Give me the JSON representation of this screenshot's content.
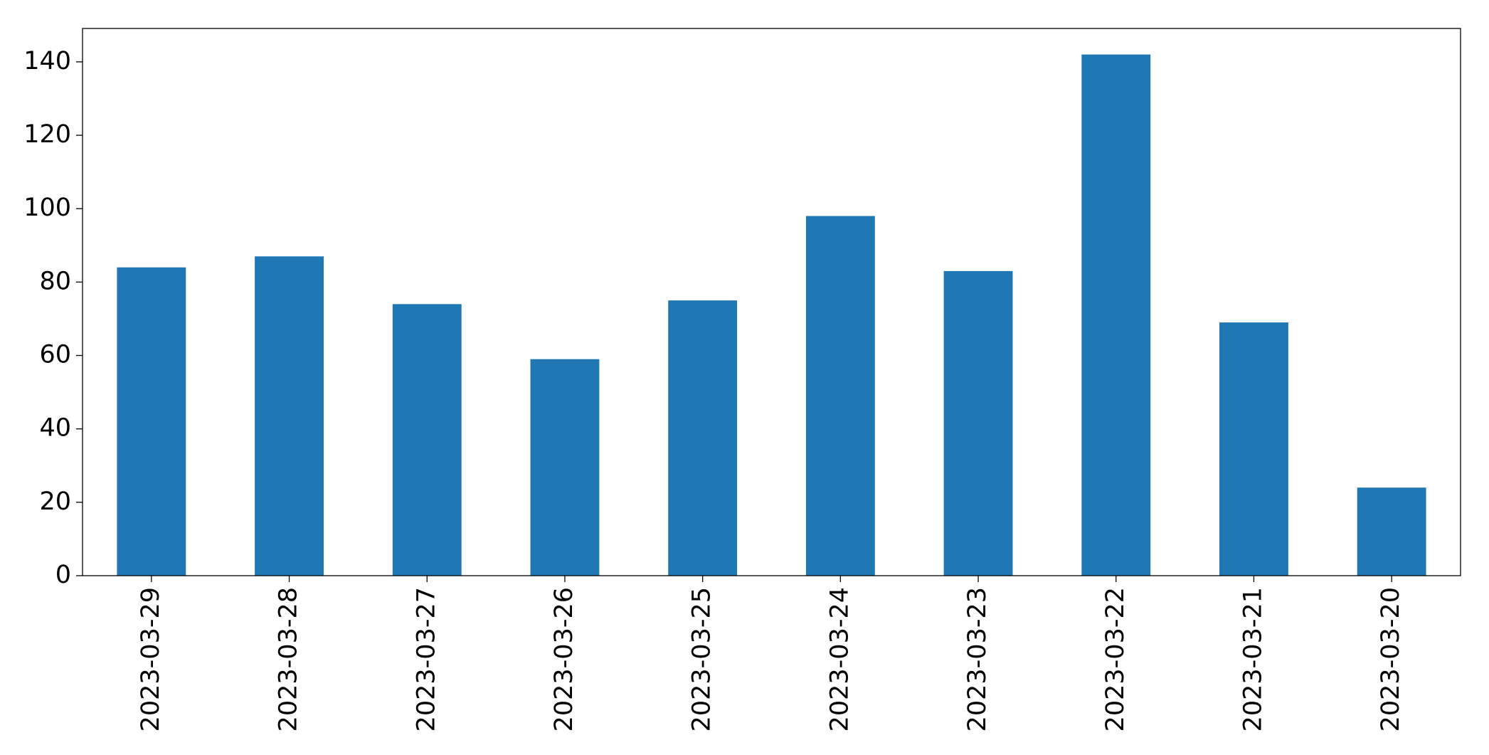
{
  "chart_data": {
    "type": "bar",
    "categories": [
      "2023-03-29",
      "2023-03-28",
      "2023-03-27",
      "2023-03-26",
      "2023-03-25",
      "2023-03-24",
      "2023-03-23",
      "2023-03-22",
      "2023-03-21",
      "2023-03-20"
    ],
    "values": [
      84,
      87,
      74,
      59,
      75,
      98,
      83,
      142,
      69,
      24
    ],
    "color": "#1f77b4",
    "ylim": [
      0,
      149.1
    ],
    "yticks": [
      0,
      20,
      40,
      60,
      80,
      100,
      120,
      140
    ],
    "grid": false
  }
}
